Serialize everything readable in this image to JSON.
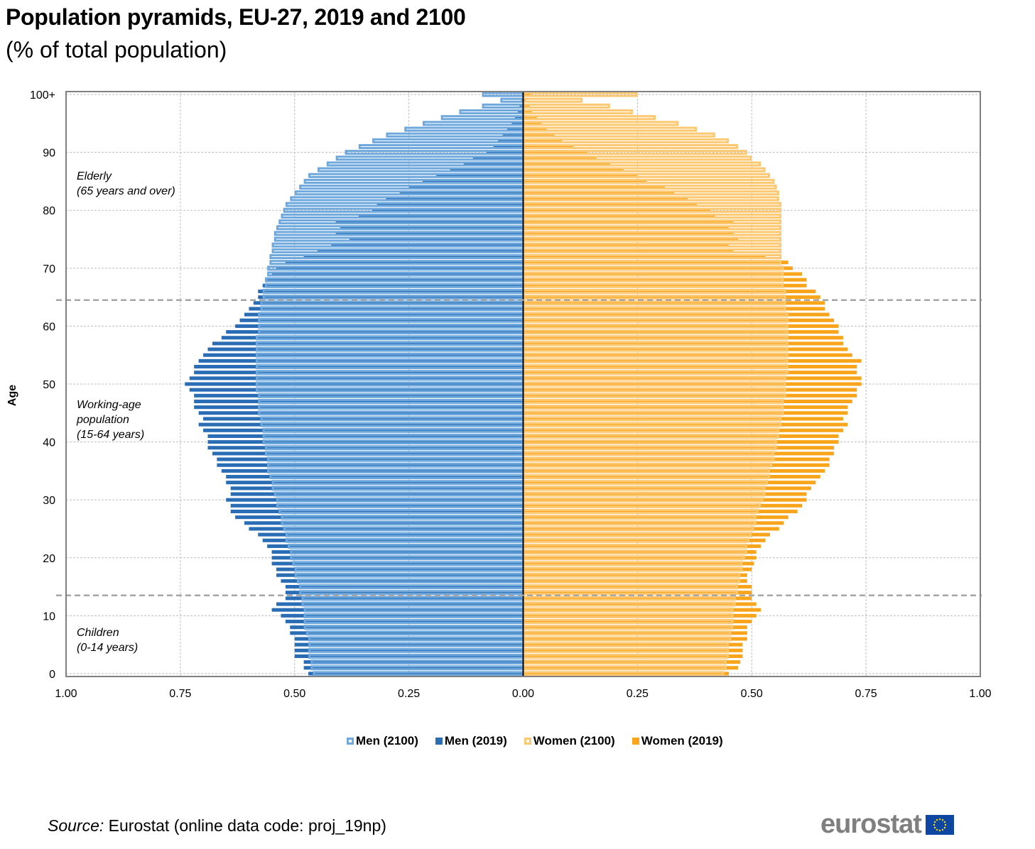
{
  "title": "Population pyramids, EU-27, 2019 and 2100",
  "subtitle": "(% of total population)",
  "source_label": "Source:",
  "source_text": " Eurostat (online data code: proj_19np)",
  "logo_text": "eurostat",
  "logo_icon": "eu-flag-icon",
  "chart_data": {
    "type": "bar",
    "orientation": "horizontal-pyramid",
    "title": "Population pyramids, EU-27, 2019 and 2100",
    "subtitle": "(% of total population)",
    "xlabel": "",
    "ylabel": "Age",
    "xlim": [
      -1.0,
      1.0
    ],
    "x_ticks": [
      -1.0,
      -0.75,
      -0.5,
      -0.25,
      0.0,
      0.25,
      0.5,
      0.75,
      1.0
    ],
    "x_tick_labels": [
      "1.00",
      "0.75",
      "0.50",
      "0.25",
      "0.00",
      "0.25",
      "0.50",
      "0.75",
      "1.00"
    ],
    "y_ticks": [
      0,
      10,
      20,
      30,
      40,
      50,
      60,
      70,
      80,
      90,
      100
    ],
    "y_tick_labels": [
      "0",
      "10",
      "20",
      "30",
      "40",
      "50",
      "60",
      "70",
      "80",
      "90",
      "100+"
    ],
    "grid": true,
    "legend_position": "bottom",
    "colors": {
      "men_2100": "#6fa8dc",
      "men_2019": "#2a6db5",
      "women_2100": "#fdc872",
      "women_2019": "#f8a51c",
      "reference_lines": "#a6a6a6"
    },
    "reference_lines": [
      {
        "age": 65,
        "style": "dashed"
      },
      {
        "age": 14,
        "style": "dashed"
      }
    ],
    "annotations": [
      {
        "text": "Elderly",
        "text2": "(65 years and over)",
        "age": 85
      },
      {
        "text": "Working-age",
        "text2": "population",
        "text3": "(15-64 years)",
        "age": 46
      },
      {
        "text": "Children",
        "text2": "(0-14 years)",
        "age": 7
      }
    ],
    "categories": [
      0,
      1,
      2,
      3,
      4,
      5,
      6,
      7,
      8,
      9,
      10,
      11,
      12,
      13,
      14,
      15,
      16,
      17,
      18,
      19,
      20,
      21,
      22,
      23,
      24,
      25,
      26,
      27,
      28,
      29,
      30,
      31,
      32,
      33,
      34,
      35,
      36,
      37,
      38,
      39,
      40,
      41,
      42,
      43,
      44,
      45,
      46,
      47,
      48,
      49,
      50,
      51,
      52,
      53,
      54,
      55,
      56,
      57,
      58,
      59,
      60,
      61,
      62,
      63,
      64,
      65,
      66,
      67,
      68,
      69,
      70,
      71,
      72,
      73,
      74,
      75,
      76,
      77,
      78,
      79,
      80,
      81,
      82,
      83,
      84,
      85,
      86,
      87,
      88,
      89,
      90,
      91,
      92,
      93,
      94,
      95,
      96,
      97,
      98,
      99,
      "100+"
    ],
    "series": [
      {
        "name": "Men (2100)",
        "style": "outline",
        "values": [
          0.46,
          0.465,
          0.465,
          0.47,
          0.47,
          0.47,
          0.47,
          0.475,
          0.48,
          0.48,
          0.48,
          0.48,
          0.485,
          0.485,
          0.49,
          0.49,
          0.495,
          0.5,
          0.5,
          0.505,
          0.51,
          0.51,
          0.515,
          0.52,
          0.52,
          0.525,
          0.53,
          0.53,
          0.535,
          0.54,
          0.54,
          0.545,
          0.55,
          0.55,
          0.555,
          0.56,
          0.56,
          0.56,
          0.565,
          0.565,
          0.57,
          0.57,
          0.57,
          0.575,
          0.575,
          0.58,
          0.58,
          0.58,
          0.58,
          0.585,
          0.585,
          0.585,
          0.585,
          0.585,
          0.585,
          0.585,
          0.585,
          0.585,
          0.585,
          0.58,
          0.58,
          0.58,
          0.58,
          0.575,
          0.575,
          0.57,
          0.57,
          0.565,
          0.565,
          0.56,
          0.56,
          0.555,
          0.555,
          0.55,
          0.55,
          0.545,
          0.545,
          0.54,
          0.535,
          0.53,
          0.525,
          0.52,
          0.51,
          0.5,
          0.49,
          0.48,
          0.47,
          0.45,
          0.43,
          0.41,
          0.39,
          0.36,
          0.33,
          0.3,
          0.26,
          0.22,
          0.18,
          0.14,
          0.09,
          0.05,
          0.09
        ]
      },
      {
        "name": "Men (2019)",
        "style": "filled",
        "values": [
          0.47,
          0.48,
          0.48,
          0.5,
          0.5,
          0.5,
          0.5,
          0.51,
          0.51,
          0.52,
          0.53,
          0.55,
          0.54,
          0.52,
          0.52,
          0.52,
          0.53,
          0.54,
          0.54,
          0.55,
          0.55,
          0.55,
          0.56,
          0.57,
          0.58,
          0.6,
          0.61,
          0.63,
          0.64,
          0.64,
          0.65,
          0.64,
          0.64,
          0.65,
          0.65,
          0.66,
          0.67,
          0.67,
          0.68,
          0.69,
          0.69,
          0.69,
          0.7,
          0.71,
          0.7,
          0.71,
          0.72,
          0.72,
          0.72,
          0.73,
          0.74,
          0.73,
          0.72,
          0.72,
          0.71,
          0.7,
          0.69,
          0.68,
          0.66,
          0.65,
          0.63,
          0.62,
          0.61,
          0.6,
          0.59,
          0.58,
          0.58,
          0.57,
          0.56,
          0.55,
          0.54,
          0.52,
          0.48,
          0.45,
          0.42,
          0.38,
          0.41,
          0.4,
          0.41,
          0.36,
          0.33,
          0.32,
          0.3,
          0.27,
          0.25,
          0.22,
          0.19,
          0.16,
          0.13,
          0.11,
          0.08,
          0.065,
          0.055,
          0.045,
          0.035,
          0.025,
          0.018,
          0.012,
          0.008,
          0.004,
          0.003
        ]
      },
      {
        "name": "Women (2100)",
        "style": "outline",
        "values": [
          0.44,
          0.445,
          0.445,
          0.45,
          0.45,
          0.45,
          0.455,
          0.455,
          0.46,
          0.46,
          0.46,
          0.46,
          0.465,
          0.465,
          0.47,
          0.47,
          0.475,
          0.475,
          0.48,
          0.48,
          0.485,
          0.49,
          0.49,
          0.495,
          0.5,
          0.505,
          0.51,
          0.51,
          0.515,
          0.52,
          0.525,
          0.53,
          0.53,
          0.535,
          0.54,
          0.54,
          0.545,
          0.55,
          0.55,
          0.555,
          0.555,
          0.56,
          0.56,
          0.565,
          0.565,
          0.57,
          0.57,
          0.57,
          0.575,
          0.575,
          0.575,
          0.575,
          0.58,
          0.58,
          0.58,
          0.58,
          0.58,
          0.58,
          0.58,
          0.58,
          0.58,
          0.58,
          0.58,
          0.575,
          0.575,
          0.575,
          0.575,
          0.57,
          0.57,
          0.57,
          0.57,
          0.565,
          0.565,
          0.565,
          0.565,
          0.565,
          0.565,
          0.565,
          0.565,
          0.565,
          0.565,
          0.565,
          0.56,
          0.56,
          0.555,
          0.55,
          0.54,
          0.53,
          0.52,
          0.5,
          0.49,
          0.47,
          0.45,
          0.42,
          0.38,
          0.34,
          0.29,
          0.24,
          0.19,
          0.13,
          0.25
        ]
      },
      {
        "name": "Women (2019)",
        "style": "filled",
        "values": [
          0.45,
          0.47,
          0.475,
          0.48,
          0.48,
          0.48,
          0.49,
          0.49,
          0.49,
          0.5,
          0.51,
          0.52,
          0.51,
          0.5,
          0.5,
          0.5,
          0.49,
          0.49,
          0.5,
          0.505,
          0.51,
          0.51,
          0.52,
          0.53,
          0.54,
          0.56,
          0.57,
          0.58,
          0.6,
          0.61,
          0.62,
          0.62,
          0.63,
          0.64,
          0.65,
          0.66,
          0.67,
          0.67,
          0.68,
          0.68,
          0.69,
          0.69,
          0.7,
          0.71,
          0.7,
          0.71,
          0.71,
          0.72,
          0.73,
          0.73,
          0.74,
          0.74,
          0.73,
          0.73,
          0.74,
          0.72,
          0.71,
          0.7,
          0.7,
          0.69,
          0.69,
          0.68,
          0.67,
          0.66,
          0.66,
          0.65,
          0.64,
          0.62,
          0.62,
          0.61,
          0.59,
          0.58,
          0.53,
          0.46,
          0.45,
          0.47,
          0.46,
          0.45,
          0.46,
          0.42,
          0.41,
          0.38,
          0.36,
          0.33,
          0.31,
          0.27,
          0.25,
          0.22,
          0.19,
          0.16,
          0.14,
          0.11,
          0.085,
          0.068,
          0.051,
          0.04,
          0.03,
          0.019,
          0.014,
          0.006,
          0.017
        ]
      }
    ]
  },
  "legend": [
    {
      "label": "Men (2100)",
      "key": "men_2100"
    },
    {
      "label": "Men (2019)",
      "key": "men_2019"
    },
    {
      "label": "Women (2100)",
      "key": "women_2100"
    },
    {
      "label": "Women (2019)",
      "key": "women_2019"
    }
  ]
}
